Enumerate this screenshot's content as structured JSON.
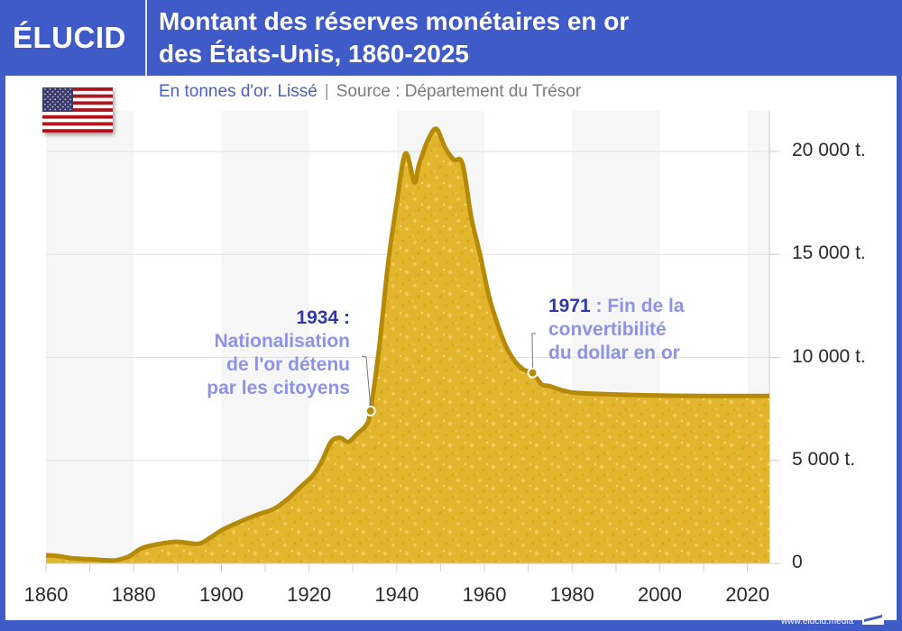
{
  "header": {
    "logo": "ÉLUCID",
    "title_line1": "Montant des réserves monétaires en or",
    "title_line2": "des États-Unis, 1860-2025"
  },
  "subtitle": {
    "unit": "En tonnes d'or. Lissé",
    "separator": "|",
    "source": "Source : Département du Trésor"
  },
  "flag": {
    "icon": "us-flag-icon"
  },
  "colors": {
    "brand_blue": "#3f5bc8",
    "gold_fill": "#e3b52c",
    "gold_stroke": "#b58a06",
    "annotation_year": "#2f3aa8",
    "annotation_text": "#8e93e6",
    "band_grey": "#f6f6f6"
  },
  "annotations": [
    {
      "year_label": "1934 :",
      "lines": [
        "Nationalisation",
        "de l'or détenu",
        "par les citoyens"
      ]
    },
    {
      "year_label": "1971",
      "first_line_rest": " : Fin de la",
      "lines": [
        "convertibilité",
        "du dollar en or"
      ]
    }
  ],
  "footer": {
    "url": "www.elucid.media"
  },
  "chart_data": {
    "type": "area",
    "title": "Montant des réserves monétaires en or des États-Unis, 1860-2025",
    "subtitle": "En tonnes d'or. Lissé | Source : Département du Trésor",
    "xlabel": "",
    "ylabel": "",
    "x_ticks": [
      "1860",
      "1880",
      "1900",
      "1920",
      "1940",
      "1960",
      "1980",
      "2000",
      "2020"
    ],
    "y_ticks": [
      "0",
      "5 000 t.",
      "10 000 t.",
      "15 000 t.",
      "20 000 t."
    ],
    "xlim": [
      1860,
      2025
    ],
    "ylim": [
      0,
      22000
    ],
    "y_axis_position": "right",
    "grid": "horizontal",
    "x": [
      1860,
      1863,
      1866,
      1870,
      1874,
      1876,
      1879,
      1882,
      1886,
      1890,
      1894,
      1896,
      1900,
      1904,
      1908,
      1912,
      1915,
      1918,
      1921,
      1923,
      1925,
      1927,
      1929,
      1931,
      1933,
      1934,
      1936,
      1938,
      1940,
      1942,
      1944,
      1945,
      1947,
      1949,
      1951,
      1953,
      1955,
      1957,
      1959,
      1961,
      1963,
      1965,
      1967,
      1969,
      1971,
      1973,
      1975,
      1980,
      1990,
      2000,
      2010,
      2025
    ],
    "y": [
      400,
      350,
      250,
      200,
      150,
      150,
      350,
      750,
      950,
      1050,
      950,
      1050,
      1600,
      2000,
      2350,
      2650,
      3100,
      3700,
      4300,
      5000,
      5900,
      6100,
      5900,
      6300,
      6700,
      7400,
      10500,
      14500,
      17500,
      19900,
      18500,
      19300,
      20500,
      21100,
      20200,
      19600,
      19400,
      16800,
      15000,
      13000,
      11600,
      10500,
      9800,
      9400,
      9250,
      8700,
      8600,
      8300,
      8200,
      8150,
      8130,
      8130
    ],
    "annotations": [
      {
        "x": 1934,
        "y": 7400,
        "label": "1934 : Nationalisation de l'or détenu par les citoyens"
      },
      {
        "x": 1971,
        "y": 9250,
        "label": "1971 : Fin de la convertibilité du dollar en or"
      }
    ]
  }
}
